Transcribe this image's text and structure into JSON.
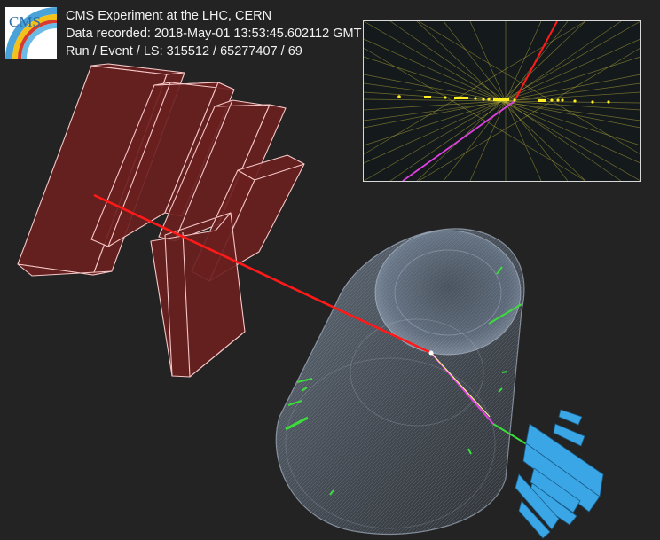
{
  "logo": {
    "text": "CMS",
    "icon": "cms-experiment-logo",
    "colors": {
      "blue": "#4aa3d8",
      "yellow": "#f3c21a",
      "red": "#d63b2d"
    }
  },
  "event_info": {
    "line1": "CMS Experiment at the LHC, CERN",
    "line2": "Data recorded: 2018-May-01 13:53:45.602112 GMT",
    "line3": "Run / Event / LS: 315512 / 65277407 / 69"
  },
  "colors": {
    "background": "#232323",
    "muon_chamber_fill": "#6a1f1f",
    "muon_chamber_edge": "#f4c6c6",
    "muon_track": "#ff1a1a",
    "electron_track": "#e040e0",
    "tracks": "#3ddc3d",
    "calorimeter": "#3aa6e6",
    "vertex_tracks": "#b9b13a",
    "vertices": "#ffee22",
    "detector_barrel": "#8ea6c4"
  }
}
